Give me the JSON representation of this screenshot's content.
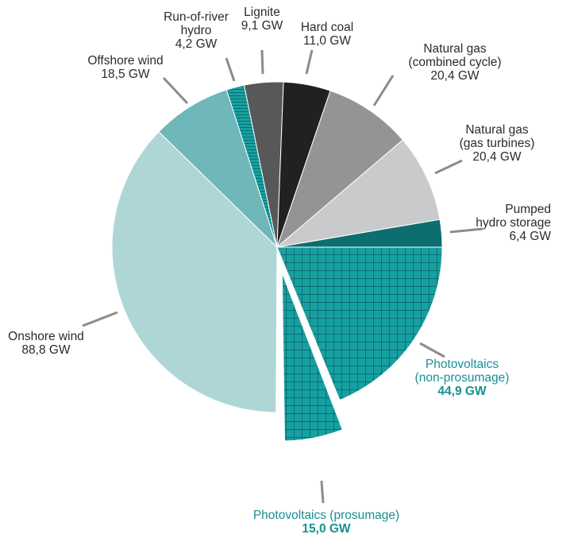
{
  "chart_data": {
    "type": "pie",
    "unit": "GW",
    "slices": [
      {
        "id": "pumped-hydro-storage",
        "label_lines": [
          "Pumped",
          "hydro storage"
        ],
        "value_text": "6,4 GW",
        "value": 6.4,
        "color": "#0d6e70",
        "pattern": "none"
      },
      {
        "id": "pv-non-prosumage",
        "label_lines": [
          "Photovoltaics",
          "(non-prosumage)"
        ],
        "value_text": "44,9 GW",
        "value": 44.9,
        "color": "#17a0a1",
        "pattern": "grid",
        "label_color": "#1a8f92"
      },
      {
        "id": "pv-prosumage",
        "label_lines": [
          "Photovoltaics (prosumage)"
        ],
        "value_text": "15,0 GW",
        "value": 15.0,
        "color": "#17a0a1",
        "pattern": "grid",
        "exploded": true,
        "label_color": "#1a8f92"
      },
      {
        "id": "onshore-wind",
        "label_lines": [
          "Onshore wind"
        ],
        "value_text": "88,8 GW",
        "value": 88.8,
        "color": "#afd6d6",
        "pattern": "none"
      },
      {
        "id": "offshore-wind",
        "label_lines": [
          "Offshore wind"
        ],
        "value_text": "18,5 GW",
        "value": 18.5,
        "color": "#6fb7b8",
        "pattern": "none"
      },
      {
        "id": "run-of-river-hydro",
        "label_lines": [
          "Run-of-river",
          "hydro"
        ],
        "value_text": "4,2 GW",
        "value": 4.2,
        "color": "#17a0a1",
        "pattern": "hlines"
      },
      {
        "id": "lignite",
        "label_lines": [
          "Lignite"
        ],
        "value_text": "9,1 GW",
        "value": 9.1,
        "color": "#575859",
        "pattern": "none"
      },
      {
        "id": "hard-coal",
        "label_lines": [
          "Hard coal"
        ],
        "value_text": "11,0 GW",
        "value": 11.0,
        "color": "#232021",
        "pattern": "none"
      },
      {
        "id": "natural-gas-combined-cycle",
        "label_lines": [
          "Natural gas",
          "(combined cycle)"
        ],
        "value_text": "20,4 GW",
        "value": 20.4,
        "color": "#939495",
        "pattern": "none"
      },
      {
        "id": "natural-gas-gas-turbines",
        "label_lines": [
          "Natural gas",
          "(gas turbines)"
        ],
        "value_text": "20,4 GW",
        "value": 20.4,
        "color": "#c9cacb",
        "pattern": "none"
      }
    ]
  }
}
